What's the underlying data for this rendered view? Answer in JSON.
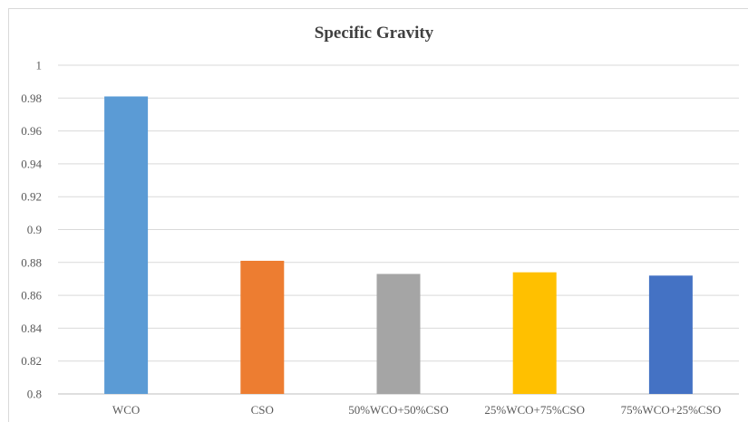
{
  "chart_data": {
    "type": "bar",
    "title": "Specific Gravity",
    "categories": [
      "WCO",
      "CSO",
      "50%WCO+50%CSO",
      "25%WCO+75%CSO",
      "75%WCO+25%CSO"
    ],
    "values": [
      0.981,
      0.881,
      0.873,
      0.874,
      0.872
    ],
    "colors": [
      "#5b9bd5",
      "#ed7d31",
      "#a5a5a5",
      "#ffc000",
      "#4472c4"
    ],
    "ylim": [
      0.8,
      1
    ],
    "yticks": [
      "0.8",
      "0.82",
      "0.84",
      "0.86",
      "0.88",
      "0.9",
      "0.92",
      "0.94",
      "0.96",
      "0.98",
      "1"
    ],
    "xlabel": "",
    "ylabel": "",
    "grid": true,
    "legend": "none"
  }
}
